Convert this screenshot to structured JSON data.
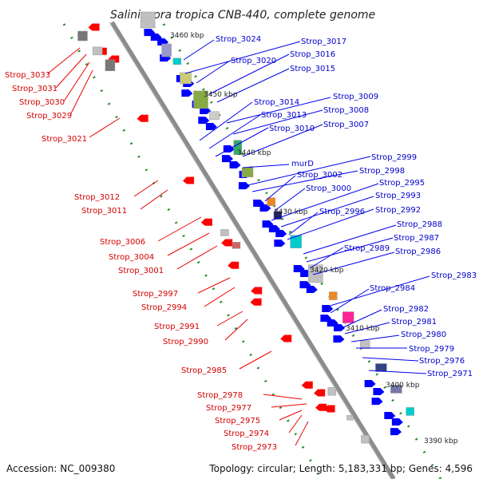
{
  "title": "Salinispora tropica CNB-440, complete genome",
  "footer": {
    "accession": "Accession: NC_009380",
    "summary": "Topology: circular; Length: 5,183,331 bp; Genes: 4,596"
  },
  "colors": {
    "backbone": "#8c8c8c",
    "minus_strand": "#ff0000",
    "plus_strand": "#0000ff",
    "tick_dots": "#2a8a2a",
    "label_red": "#d40000",
    "label_blue": "#0000cc"
  },
  "kbp_marks": [
    "3460 kbp",
    "3450 kbp",
    "3440 kbp",
    "3430 kbp",
    "3420 kbp",
    "3410 kbp",
    "3400 kbp",
    "3390 kbp"
  ],
  "left_labels": [
    "Strop_3033",
    "Strop_3031",
    "Strop_3030",
    "Strop_3029",
    "Strop_3021",
    "Strop_3012",
    "Strop_3011",
    "Strop_3006",
    "Strop_3004",
    "Strop_3001",
    "Strop_2997",
    "Strop_2994",
    "Strop_2991",
    "Strop_2990",
    "Strop_2985",
    "Strop_2978",
    "Strop_2977",
    "Strop_2975",
    "Strop_2974",
    "Strop_2973"
  ],
  "right_labels": [
    "Strop_3024",
    "Strop_3017",
    "Strop_3020",
    "Strop_3016",
    "Strop_3015",
    "Strop_3009",
    "Strop_3014",
    "Strop_3008",
    "Strop_3013",
    "Strop_3010",
    "Strop_3007",
    "murD",
    "Strop_2999",
    "Strop_2998",
    "Strop_3002",
    "Strop_2995",
    "Strop_3000",
    "Strop_2993",
    "Strop_2996",
    "Strop_2992",
    "Strop_2988",
    "Strop_2987",
    "Strop_2989",
    "Strop_2986",
    "Strop_2983",
    "Strop_2984",
    "Strop_2982",
    "Strop_2981",
    "Strop_2980",
    "Strop_2979",
    "Strop_2976",
    "Strop_2971"
  ]
}
